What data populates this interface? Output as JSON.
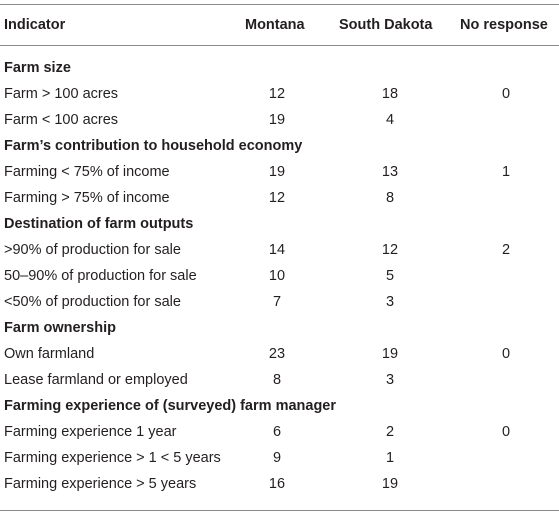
{
  "header": {
    "indicator": "Indicator",
    "montana": "Montana",
    "south_dakota": "South Dakota",
    "no_response": "No response"
  },
  "sections": [
    {
      "title": "Farm size",
      "rows": [
        {
          "indicator": "Farm > 100 acres",
          "montana": "12",
          "south_dakota": "18",
          "no_response": "0"
        },
        {
          "indicator": "Farm < 100 acres",
          "montana": "19",
          "south_dakota": "4",
          "no_response": ""
        }
      ]
    },
    {
      "title": "Farm’s contribution to household economy",
      "rows": [
        {
          "indicator": "Farming < 75% of income",
          "montana": "19",
          "south_dakota": "13",
          "no_response": "1"
        },
        {
          "indicator": "Farming > 75% of income",
          "montana": "12",
          "south_dakota": "8",
          "no_response": ""
        }
      ]
    },
    {
      "title": "Destination of farm outputs",
      "rows": [
        {
          "indicator": ">90% of production for sale",
          "montana": "14",
          "south_dakota": "12",
          "no_response": "2"
        },
        {
          "indicator": "50–90% of production for sale",
          "montana": "10",
          "south_dakota": "5",
          "no_response": ""
        },
        {
          "indicator": "<50% of production for sale",
          "montana": "7",
          "south_dakota": "3",
          "no_response": ""
        }
      ]
    },
    {
      "title": "Farm ownership",
      "rows": [
        {
          "indicator": "Own farmland",
          "montana": "23",
          "south_dakota": "19",
          "no_response": "0"
        },
        {
          "indicator": "Lease farmland or employed",
          "montana": "8",
          "south_dakota": "3",
          "no_response": ""
        }
      ]
    },
    {
      "title": "Farming experience of (surveyed) farm manager",
      "rows": [
        {
          "indicator": "Farming experience 1 year",
          "montana": "6",
          "south_dakota": "2",
          "no_response": "0"
        },
        {
          "indicator": "Farming experience > 1 < 5 years",
          "montana": "9",
          "south_dakota": "1",
          "no_response": ""
        },
        {
          "indicator": "Farming experience > 5 years",
          "montana": "16",
          "south_dakota": "19",
          "no_response": ""
        }
      ]
    }
  ]
}
